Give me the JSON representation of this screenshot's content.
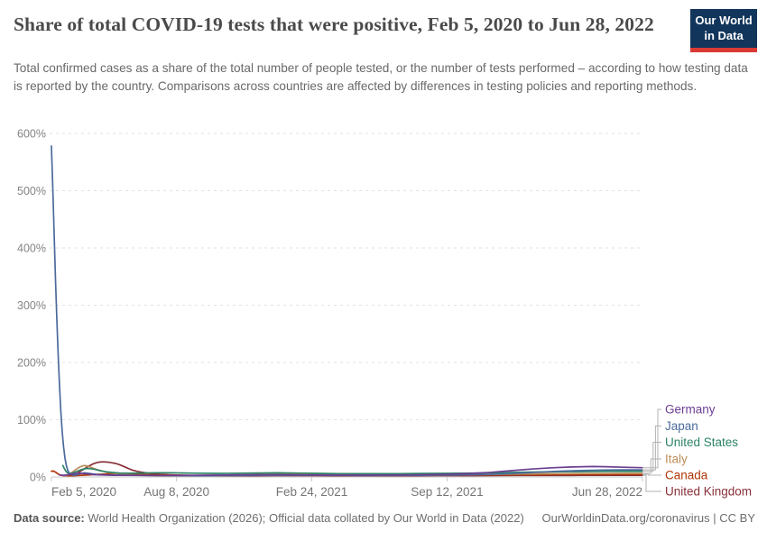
{
  "header": {
    "title": "Share of total COVID-19 tests that were positive, Feb 5, 2020 to Jun 28, 2022",
    "subtitle": "Total confirmed cases as a share of the total number of people tested, or the number of tests performed – according to how testing data is reported by the country. Comparisons across countries are affected by differences in testing policies and reporting methods.",
    "logo": {
      "line1": "Our World",
      "line2": "in Data"
    }
  },
  "footer": {
    "source_label": "Data source:",
    "source_text": " World Health Organization (2026); Official data collated by Our World in Data (2022)",
    "link_text": "OurWorldinData.org/coronavirus | CC BY"
  },
  "colors": {
    "logo_bg": "#12355b",
    "logo_stripe": "#d93a34",
    "grid": "#e2e2e2",
    "axis": "#c9c9c9",
    "tick_label": "#848484",
    "x_tick_label": "#757575",
    "legend_connector": "#b3b3b3"
  },
  "chart_data": {
    "type": "line",
    "title": "Share of total COVID-19 tests that were positive, Feb 5, 2020 to Jun 28, 2022",
    "xlabel": "",
    "ylabel": "",
    "ylim": [
      0,
      600
    ],
    "y_ticks": [
      0,
      100,
      200,
      300,
      400,
      500,
      600
    ],
    "y_tick_suffix": "%",
    "grid": "horizontal-dashed",
    "legend_position": "right",
    "x_range_days": [
      0,
      874
    ],
    "x_ticks": [
      {
        "label": "Feb 5, 2020",
        "day": 0
      },
      {
        "label": "Aug 8, 2020",
        "day": 185
      },
      {
        "label": "Feb 24, 2021",
        "day": 385
      },
      {
        "label": "Sep 12, 2021",
        "day": 585
      },
      {
        "label": "Jun 28, 2022",
        "day": 874
      }
    ],
    "series": [
      {
        "name": "Germany",
        "color": "#6D3E91",
        "points": [
          [
            12,
            3.5
          ],
          [
            18,
            3
          ],
          [
            25,
            4
          ],
          [
            32,
            5.5
          ],
          [
            40,
            6.5
          ],
          [
            48,
            6
          ],
          [
            56,
            5
          ],
          [
            65,
            4
          ],
          [
            75,
            3.4
          ],
          [
            90,
            3
          ],
          [
            110,
            2.8
          ],
          [
            140,
            2.6
          ],
          [
            170,
            2.7
          ],
          [
            200,
            2.9
          ],
          [
            230,
            3.2
          ],
          [
            260,
            3.5
          ],
          [
            290,
            3.8
          ],
          [
            320,
            4
          ],
          [
            350,
            3.8
          ],
          [
            380,
            3.5
          ],
          [
            410,
            3.2
          ],
          [
            440,
            3.1
          ],
          [
            470,
            3.2
          ],
          [
            500,
            3.4
          ],
          [
            530,
            3.7
          ],
          [
            560,
            4.2
          ],
          [
            590,
            5
          ],
          [
            620,
            6.2
          ],
          [
            650,
            8.2
          ],
          [
            680,
            11
          ],
          [
            710,
            13.8
          ],
          [
            740,
            16
          ],
          [
            770,
            17.5
          ],
          [
            800,
            18.2
          ],
          [
            820,
            18
          ],
          [
            845,
            17
          ],
          [
            874,
            16.2
          ]
        ]
      },
      {
        "name": "Japan",
        "color": "#4C6A9C",
        "points": [
          [
            0,
            578
          ],
          [
            2,
            505
          ],
          [
            4,
            425
          ],
          [
            6,
            345
          ],
          [
            8,
            275
          ],
          [
            10,
            212
          ],
          [
            12,
            158
          ],
          [
            14,
            112
          ],
          [
            16,
            78
          ],
          [
            18,
            52
          ],
          [
            20,
            33
          ],
          [
            22,
            20
          ],
          [
            24,
            12
          ],
          [
            26,
            7.5
          ],
          [
            28,
            5
          ],
          [
            31,
            3.6
          ],
          [
            34,
            3.2
          ],
          [
            38,
            4
          ],
          [
            43,
            6
          ],
          [
            48,
            7.2
          ],
          [
            54,
            6.5
          ],
          [
            60,
            5.5
          ],
          [
            70,
            4.3
          ],
          [
            82,
            3.6
          ],
          [
            100,
            3.1
          ],
          [
            125,
            2.8
          ],
          [
            155,
            2.5
          ],
          [
            185,
            2.3
          ],
          [
            215,
            2.2
          ],
          [
            245,
            2.3
          ],
          [
            275,
            2.5
          ],
          [
            305,
            2.8
          ],
          [
            335,
            3
          ],
          [
            365,
            3
          ],
          [
            395,
            2.8
          ],
          [
            425,
            2.6
          ],
          [
            455,
            2.5
          ],
          [
            485,
            2.6
          ],
          [
            515,
            2.8
          ],
          [
            545,
            3
          ],
          [
            575,
            3.3
          ],
          [
            605,
            3.7
          ],
          [
            635,
            4.3
          ],
          [
            665,
            5.3
          ],
          [
            695,
            6.8
          ],
          [
            725,
            8.6
          ],
          [
            755,
            10.2
          ],
          [
            785,
            11.4
          ],
          [
            815,
            12.1
          ],
          [
            845,
            12.4
          ],
          [
            874,
            12.4
          ]
        ]
      },
      {
        "name": "United States",
        "color": "#2C8465",
        "points": [
          [
            17,
            20
          ],
          [
            19,
            15
          ],
          [
            21,
            11
          ],
          [
            23,
            8
          ],
          [
            26,
            6
          ],
          [
            30,
            6.5
          ],
          [
            35,
            8.5
          ],
          [
            40,
            11
          ],
          [
            46,
            13.5
          ],
          [
            52,
            15
          ],
          [
            58,
            14.5
          ],
          [
            65,
            13
          ],
          [
            72,
            11
          ],
          [
            80,
            9.2
          ],
          [
            90,
            7.8
          ],
          [
            100,
            7
          ],
          [
            115,
            6.6
          ],
          [
            135,
            6.9
          ],
          [
            155,
            7.3
          ],
          [
            175,
            7.4
          ],
          [
            195,
            7
          ],
          [
            215,
            6.6
          ],
          [
            245,
            6.3
          ],
          [
            275,
            6.5
          ],
          [
            305,
            7
          ],
          [
            335,
            7.2
          ],
          [
            365,
            6.8
          ],
          [
            395,
            6.3
          ],
          [
            425,
            5.9
          ],
          [
            455,
            5.6
          ],
          [
            485,
            5.7
          ],
          [
            515,
            5.9
          ],
          [
            545,
            6.1
          ],
          [
            575,
            6.3
          ],
          [
            605,
            6.6
          ],
          [
            635,
            7
          ],
          [
            665,
            7.6
          ],
          [
            695,
            8.3
          ],
          [
            725,
            8.8
          ],
          [
            755,
            9.2
          ],
          [
            785,
            9.5
          ],
          [
            815,
            9.7
          ],
          [
            845,
            9.8
          ],
          [
            874,
            9.8
          ]
        ]
      },
      {
        "name": "Italy",
        "color": "#BC8E5A",
        "points": [
          [
            20,
            2
          ],
          [
            24,
            3.5
          ],
          [
            28,
            6
          ],
          [
            32,
            9.5
          ],
          [
            36,
            13
          ],
          [
            40,
            16
          ],
          [
            44,
            18.5
          ],
          [
            48,
            20
          ],
          [
            52,
            19.5
          ],
          [
            56,
            18
          ],
          [
            60,
            16
          ],
          [
            66,
            13.5
          ],
          [
            72,
            11.3
          ],
          [
            80,
            9
          ],
          [
            88,
            7.2
          ],
          [
            96,
            5.8
          ],
          [
            105,
            4.6
          ],
          [
            115,
            3.8
          ],
          [
            125,
            3.2
          ],
          [
            140,
            2.7
          ],
          [
            155,
            2.4
          ],
          [
            175,
            2.1
          ],
          [
            195,
            2
          ],
          [
            215,
            2.1
          ],
          [
            240,
            2.4
          ],
          [
            265,
            3
          ],
          [
            290,
            3.7
          ],
          [
            315,
            4.4
          ],
          [
            335,
            4.9
          ],
          [
            350,
            5.1
          ],
          [
            365,
            5
          ],
          [
            385,
            4.6
          ],
          [
            405,
            4.2
          ],
          [
            425,
            3.8
          ],
          [
            445,
            3.4
          ],
          [
            465,
            3.1
          ],
          [
            485,
            3
          ],
          [
            510,
            3
          ],
          [
            535,
            3.2
          ],
          [
            560,
            3.4
          ],
          [
            585,
            3.6
          ],
          [
            610,
            3.9
          ],
          [
            635,
            4.2
          ],
          [
            660,
            4.6
          ],
          [
            685,
            5
          ],
          [
            710,
            5.3
          ],
          [
            735,
            5.6
          ],
          [
            760,
            5.8
          ],
          [
            785,
            6
          ],
          [
            815,
            6.2
          ],
          [
            845,
            6.3
          ],
          [
            874,
            6.3
          ]
        ]
      },
      {
        "name": "Canada",
        "color": "#B13507",
        "points": [
          [
            0,
            10
          ],
          [
            3,
            10.4
          ],
          [
            6,
            8.5
          ],
          [
            9,
            6
          ],
          [
            12,
            4
          ],
          [
            15,
            2.9
          ],
          [
            18,
            2.4
          ],
          [
            22,
            2.1
          ],
          [
            27,
            2
          ],
          [
            33,
            2.2
          ],
          [
            40,
            2.6
          ],
          [
            48,
            3.1
          ],
          [
            57,
            3.7
          ],
          [
            66,
            4.4
          ],
          [
            76,
            5
          ],
          [
            86,
            5.6
          ],
          [
            96,
            5.9
          ],
          [
            106,
            5.7
          ],
          [
            118,
            5.1
          ],
          [
            132,
            4.4
          ],
          [
            148,
            3.8
          ],
          [
            165,
            3.3
          ],
          [
            185,
            2.9
          ],
          [
            210,
            2.7
          ],
          [
            235,
            2.6
          ],
          [
            260,
            2.7
          ],
          [
            285,
            2.9
          ],
          [
            310,
            3.1
          ],
          [
            335,
            3.2
          ],
          [
            360,
            3.1
          ],
          [
            390,
            2.9
          ],
          [
            420,
            2.8
          ],
          [
            450,
            2.7
          ],
          [
            480,
            2.8
          ],
          [
            510,
            2.9
          ],
          [
            540,
            3
          ],
          [
            570,
            3.2
          ],
          [
            600,
            3.4
          ],
          [
            630,
            3.6
          ],
          [
            660,
            3.8
          ],
          [
            690,
            4
          ],
          [
            720,
            4.1
          ],
          [
            750,
            4.2
          ],
          [
            780,
            4.3
          ],
          [
            810,
            4.4
          ],
          [
            845,
            4.5
          ],
          [
            874,
            4.5
          ]
        ]
      },
      {
        "name": "United Kingdom",
        "color": "#883039",
        "points": [
          [
            25,
            2
          ],
          [
            29,
            2.8
          ],
          [
            33,
            4
          ],
          [
            37,
            6
          ],
          [
            41,
            8.5
          ],
          [
            45,
            11.5
          ],
          [
            49,
            14.5
          ],
          [
            53,
            17.5
          ],
          [
            57,
            20
          ],
          [
            61,
            22.5
          ],
          [
            65,
            24.3
          ],
          [
            70,
            25.8
          ],
          [
            75,
            26.4
          ],
          [
            80,
            26.2
          ],
          [
            85,
            25.6
          ],
          [
            90,
            24.8
          ],
          [
            95,
            23.6
          ],
          [
            100,
            21.8
          ],
          [
            105,
            19.4
          ],
          [
            110,
            16.8
          ],
          [
            115,
            14.2
          ],
          [
            120,
            12
          ],
          [
            127,
            9.8
          ],
          [
            135,
            8
          ],
          [
            143,
            6.6
          ],
          [
            152,
            5.5
          ],
          [
            162,
            4.6
          ],
          [
            172,
            4
          ],
          [
            185,
            3.4
          ],
          [
            200,
            2.9
          ],
          [
            220,
            2.4
          ],
          [
            245,
            2.1
          ],
          [
            270,
            2
          ],
          [
            300,
            2.1
          ],
          [
            330,
            2.3
          ],
          [
            360,
            2.4
          ],
          [
            390,
            2.3
          ],
          [
            420,
            2.1
          ],
          [
            450,
            2
          ],
          [
            480,
            2
          ],
          [
            510,
            2.1
          ],
          [
            540,
            2.2
          ],
          [
            570,
            2.3
          ],
          [
            600,
            2.3
          ],
          [
            630,
            2.4
          ],
          [
            660,
            2.5
          ],
          [
            690,
            2.6
          ],
          [
            720,
            2.6
          ],
          [
            750,
            2.7
          ],
          [
            780,
            2.8
          ],
          [
            810,
            2.9
          ],
          [
            845,
            3
          ],
          [
            874,
            3
          ]
        ]
      }
    ]
  }
}
